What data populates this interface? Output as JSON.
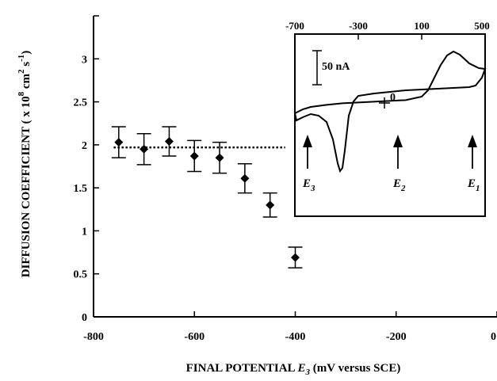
{
  "chart_data": [
    {
      "type": "scatter",
      "title": "",
      "xlabel": "FINAL POTENTIAL E 3 (mV versus SCE)",
      "xlabel_parts": {
        "before": "FINAL POTENTIAL ",
        "var": "E",
        "sub": "3",
        "after": " (mV versus SCE)"
      },
      "ylabel": "DIFFUSION COEFFICIENT ( x 10 8 cm 2 s -1)",
      "ylabel_parts": {
        "main": "DIFFUSION COEFFICIENT  ( x 10",
        "exp1": "8",
        "mid": " cm",
        "exp2": "2",
        "end": " s",
        "exp3": "-1",
        "close": ")"
      },
      "xlim": [
        -800,
        0
      ],
      "ylim": [
        0,
        3.5
      ],
      "xticks": [
        -800,
        -600,
        -400,
        -200,
        0
      ],
      "yticks": [
        0,
        0.5,
        1,
        1.5,
        2,
        2.5,
        3
      ],
      "x": [
        -750,
        -700,
        -650,
        -600,
        -550,
        -500,
        -450,
        -400
      ],
      "y": [
        2.03,
        1.95,
        2.04,
        1.87,
        1.85,
        1.61,
        1.3,
        0.69
      ],
      "yerr": [
        0.18,
        0.18,
        0.17,
        0.18,
        0.18,
        0.17,
        0.14,
        0.12
      ],
      "reference_line": {
        "y": 1.97,
        "x_range": [
          -760,
          -420
        ],
        "style": "dotted"
      },
      "grid": false
    },
    {
      "type": "line",
      "title": "",
      "description": "inset cyclic voltammogram",
      "xlim": [
        -700,
        500
      ],
      "xticks": [
        -700,
        -300,
        100,
        500
      ],
      "xticklabels": [
        "-700",
        "-300",
        "100",
        "500"
      ],
      "scale_bar_label": "50 nA",
      "zero_label": "0",
      "markers": [
        {
          "var": "E",
          "sub": "3",
          "x": -620
        },
        {
          "var": "E",
          "sub": "2",
          "x": -50
        },
        {
          "var": "E",
          "sub": "1",
          "x": 420
        }
      ],
      "upper_branch": [
        [
          -700,
          -65
        ],
        [
          -650,
          -40
        ],
        [
          -600,
          -25
        ],
        [
          -500,
          -12
        ],
        [
          -400,
          -2
        ],
        [
          -200,
          8
        ],
        [
          0,
          18
        ],
        [
          100,
          40
        ],
        [
          140,
          80
        ],
        [
          180,
          160
        ],
        [
          220,
          240
        ],
        [
          260,
          300
        ],
        [
          300,
          325
        ],
        [
          340,
          305
        ],
        [
          400,
          250
        ],
        [
          460,
          220
        ],
        [
          500,
          215
        ]
      ],
      "lower_branch": [
        [
          500,
          215
        ],
        [
          480,
          160
        ],
        [
          440,
          110
        ],
        [
          400,
          100
        ],
        [
          300,
          95
        ],
        [
          100,
          85
        ],
        [
          0,
          80
        ],
        [
          -100,
          70
        ],
        [
          -200,
          60
        ],
        [
          -300,
          45
        ],
        [
          -330,
          10
        ],
        [
          -360,
          -80
        ],
        [
          -385,
          -300
        ],
        [
          -400,
          -410
        ],
        [
          -415,
          -430
        ],
        [
          -430,
          -380
        ],
        [
          -460,
          -230
        ],
        [
          -500,
          -120
        ],
        [
          -550,
          -80
        ],
        [
          -600,
          -70
        ],
        [
          -650,
          -90
        ],
        [
          -690,
          -110
        ],
        [
          -700,
          -65
        ]
      ]
    }
  ]
}
